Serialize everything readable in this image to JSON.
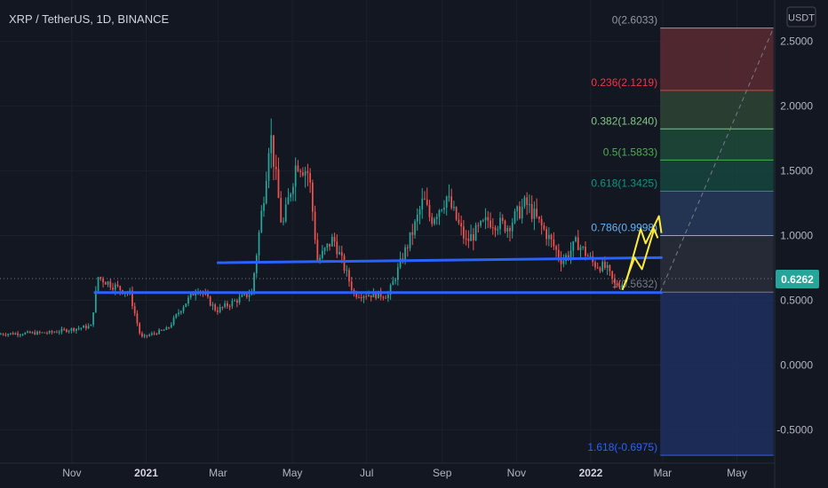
{
  "header": {
    "symbol_title": "XRP / TetherUS, 1D, BINANCE"
  },
  "currency_badge": "USDT",
  "last_price_label": "0.6262",
  "colors": {
    "background": "#131722",
    "axis_text": "#b2b5be",
    "trendline": "#2962ff",
    "last_price": "#26a69a",
    "arrow": "#ffeb3b",
    "candle_up": "#26a69a",
    "candle_down": "#ef5350"
  },
  "chart_data": {
    "type": "candlestick",
    "x_tick_labels": [
      "Nov",
      "2021",
      "Mar",
      "May",
      "Jul",
      "Sep",
      "Nov",
      "2022",
      "Mar",
      "May"
    ],
    "y_tick_labels": [
      "2.5000",
      "2.0000",
      "1.5000",
      "1.0000",
      "0.5000",
      "0.0000",
      "-0.5000"
    ],
    "y_ticks": [
      2.5,
      2.0,
      1.5,
      1.0,
      0.5,
      0.0,
      -0.5
    ],
    "ylim": [
      -0.95,
      2.82
    ],
    "x_tick_dates": [
      "2020-11-01",
      "2021-01-01",
      "2021-03-01",
      "2021-05-01",
      "2021-07-01",
      "2021-09-01",
      "2021-11-01",
      "2022-01-01",
      "2022-03-01",
      "2022-05-01"
    ],
    "xlim": [
      "2020-09-03",
      "2022-06-01"
    ],
    "last_price": 0.6262,
    "price_keypoints": [
      {
        "date": "2020-09-03",
        "price": 0.24
      },
      {
        "date": "2020-10-15",
        "price": 0.25
      },
      {
        "date": "2020-11-18",
        "price": 0.3
      },
      {
        "date": "2020-11-24",
        "price": 0.68
      },
      {
        "date": "2020-12-05",
        "price": 0.62
      },
      {
        "date": "2020-12-20",
        "price": 0.55
      },
      {
        "date": "2020-12-29",
        "price": 0.21
      },
      {
        "date": "2021-01-20",
        "price": 0.28
      },
      {
        "date": "2021-02-01",
        "price": 0.45
      },
      {
        "date": "2021-02-14",
        "price": 0.6
      },
      {
        "date": "2021-03-01",
        "price": 0.42
      },
      {
        "date": "2021-03-30",
        "price": 0.56
      },
      {
        "date": "2021-04-10",
        "price": 1.4
      },
      {
        "date": "2021-04-14",
        "price": 1.82
      },
      {
        "date": "2021-04-24",
        "price": 1.05
      },
      {
        "date": "2021-05-06",
        "price": 1.58
      },
      {
        "date": "2021-05-16",
        "price": 1.48
      },
      {
        "date": "2021-05-23",
        "price": 0.8
      },
      {
        "date": "2021-06-05",
        "price": 0.98
      },
      {
        "date": "2021-06-22",
        "price": 0.55
      },
      {
        "date": "2021-07-20",
        "price": 0.54
      },
      {
        "date": "2021-08-10",
        "price": 1.05
      },
      {
        "date": "2021-08-18",
        "price": 1.28
      },
      {
        "date": "2021-08-24",
        "price": 1.12
      },
      {
        "date": "2021-09-06",
        "price": 1.3
      },
      {
        "date": "2021-09-22",
        "price": 0.95
      },
      {
        "date": "2021-10-10",
        "price": 1.12
      },
      {
        "date": "2021-10-26",
        "price": 1.07
      },
      {
        "date": "2021-11-10",
        "price": 1.25
      },
      {
        "date": "2021-11-28",
        "price": 1.0
      },
      {
        "date": "2021-12-10",
        "price": 0.8
      },
      {
        "date": "2021-12-22",
        "price": 0.95
      },
      {
        "date": "2022-01-05",
        "price": 0.78
      },
      {
        "date": "2022-01-15",
        "price": 0.75
      },
      {
        "date": "2022-01-22",
        "price": 0.62
      },
      {
        "date": "2022-01-27",
        "price": 0.6262
      }
    ],
    "trendlines": [
      {
        "start": {
          "date": "2021-03-01",
          "price": 0.79
        },
        "end": {
          "date": "2022-02-28",
          "price": 0.83
        }
      },
      {
        "start": {
          "date": "2020-11-20",
          "price": 0.56
        },
        "end": {
          "date": "2022-02-28",
          "price": 0.56
        }
      }
    ],
    "projection_arrows": [
      [
        {
          "date": "2022-01-27",
          "price": 0.58
        },
        {
          "date": "2022-02-06",
          "price": 0.83
        },
        {
          "date": "2022-02-12",
          "price": 0.74
        },
        {
          "date": "2022-02-22",
          "price": 1.05
        },
        {
          "date": "2022-02-25",
          "price": 0.98
        }
      ],
      [
        {
          "date": "2022-01-30",
          "price": 0.64
        },
        {
          "date": "2022-02-11",
          "price": 1.05
        },
        {
          "date": "2022-02-15",
          "price": 0.94
        },
        {
          "date": "2022-02-26",
          "price": 1.15
        },
        {
          "date": "2022-02-28",
          "price": 1.02
        }
      ]
    ],
    "fibonacci": {
      "date_start": "2022-02-27",
      "date_end": "2022-05-31",
      "levels": [
        {
          "ratio": 0,
          "price": 2.6033,
          "label": "0(2.6033)",
          "color": "#9598a1",
          "fill": "#5b2a30"
        },
        {
          "ratio": 0.236,
          "price": 2.1219,
          "label": "0.236(2.1219)",
          "color": "#f23645",
          "fill": "#2e4534"
        },
        {
          "ratio": 0.382,
          "price": 1.824,
          "label": "0.382(1.8240)",
          "color": "#81c784",
          "fill": "#1f4a3a"
        },
        {
          "ratio": 0.5,
          "price": 1.5833,
          "label": "0.5(1.5833)",
          "color": "#4caf50",
          "fill": "#16453f"
        },
        {
          "ratio": 0.618,
          "price": 1.3425,
          "label": "0.618(1.3425)",
          "color": "#089981",
          "fill": "#26395a"
        },
        {
          "ratio": 0.786,
          "price": 0.9998,
          "label": "0.786(0.9998)",
          "color": "#64b5f6",
          "fill": "#2a2e39"
        },
        {
          "ratio": 1,
          "price": 0.5632,
          "label": "1(0.5632)",
          "color": "#787b86",
          "fill": "#1e2f5e"
        },
        {
          "ratio": 1.618,
          "price": -0.6975,
          "label": "1.618(-0.6975)",
          "color": "#2962ff",
          "fill": null
        }
      ],
      "trend_line": {
        "start": {
          "date": "2022-02-27",
          "price": 0.5632
        },
        "end": {
          "date": "2022-05-31",
          "price": 2.6033
        }
      }
    }
  }
}
